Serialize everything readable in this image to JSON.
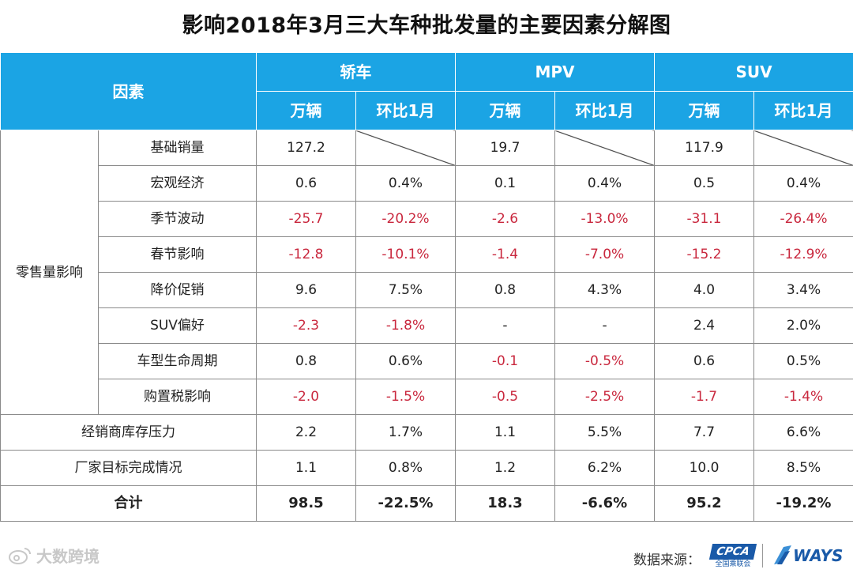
{
  "title": "影响2018年3月三大车种批发量的主要因素分解图",
  "header": {
    "factor": "因素",
    "groups": [
      "轿车",
      "MPV",
      "SUV"
    ],
    "sub": [
      "万辆",
      "环比1月",
      "万辆",
      "环比1月",
      "万辆",
      "环比1月"
    ]
  },
  "group_label": "零售量影响",
  "colors": {
    "header_bg": "#1ba4e4",
    "negative": "#c9283e",
    "text": "#222222"
  },
  "chart_data": {
    "type": "table",
    "title": "影响2018年3月三大车种批发量的主要因素分解图",
    "columns": [
      "因素",
      "轿车 万辆",
      "轿车 环比1月",
      "MPV 万辆",
      "MPV 环比1月",
      "SUV 万辆",
      "SUV 环比1月"
    ],
    "rows": [
      {
        "group": "零售量影响",
        "label": "基础销量",
        "cells": [
          "127.2",
          "",
          "19.7",
          "",
          "117.9",
          ""
        ],
        "blank_diagonal": [
          1,
          3,
          5
        ]
      },
      {
        "group": "零售量影响",
        "label": "宏观经济",
        "cells": [
          "0.6",
          "0.4%",
          "0.1",
          "0.4%",
          "0.5",
          "0.4%"
        ]
      },
      {
        "group": "零售量影响",
        "label": "季节波动",
        "cells": [
          "-25.7",
          "-20.2%",
          "-2.6",
          "-13.0%",
          "-31.1",
          "-26.4%"
        ]
      },
      {
        "group": "零售量影响",
        "label": "春节影响",
        "cells": [
          "-12.8",
          "-10.1%",
          "-1.4",
          "-7.0%",
          "-15.2",
          "-12.9%"
        ]
      },
      {
        "group": "零售量影响",
        "label": "降价促销",
        "cells": [
          "9.6",
          "7.5%",
          "0.8",
          "4.3%",
          "4.0",
          "3.4%"
        ]
      },
      {
        "group": "零售量影响",
        "label": "SUV偏好",
        "cells": [
          "-2.3",
          "-1.8%",
          "-",
          "-",
          "2.4",
          "2.0%"
        ]
      },
      {
        "group": "零售量影响",
        "label": "车型生命周期",
        "cells": [
          "0.8",
          "0.6%",
          "-0.1",
          "-0.5%",
          "0.6",
          "0.5%"
        ]
      },
      {
        "group": "零售量影响",
        "label": "购置税影响",
        "cells": [
          "-2.0",
          "-1.5%",
          "-0.5",
          "-2.5%",
          "-1.7",
          "-1.4%"
        ]
      },
      {
        "group": "",
        "label": "经销商库存压力",
        "cells": [
          "2.2",
          "1.7%",
          "1.1",
          "5.5%",
          "7.7",
          "6.6%"
        ]
      },
      {
        "group": "",
        "label": "厂家目标完成情况",
        "cells": [
          "1.1",
          "0.8%",
          "1.2",
          "6.2%",
          "10.0",
          "8.5%"
        ]
      },
      {
        "group": "",
        "label": "合计",
        "cells": [
          "98.5",
          "-22.5%",
          "18.3",
          "-6.6%",
          "95.2",
          "-19.2%"
        ],
        "bold": true
      }
    ]
  },
  "footer": {
    "watermark": "大数跨境",
    "source_label": "数据来源：",
    "cpca_logo": "CPCA",
    "cpca_sub": "全国乘联会",
    "ways_logo": "WAYS"
  }
}
